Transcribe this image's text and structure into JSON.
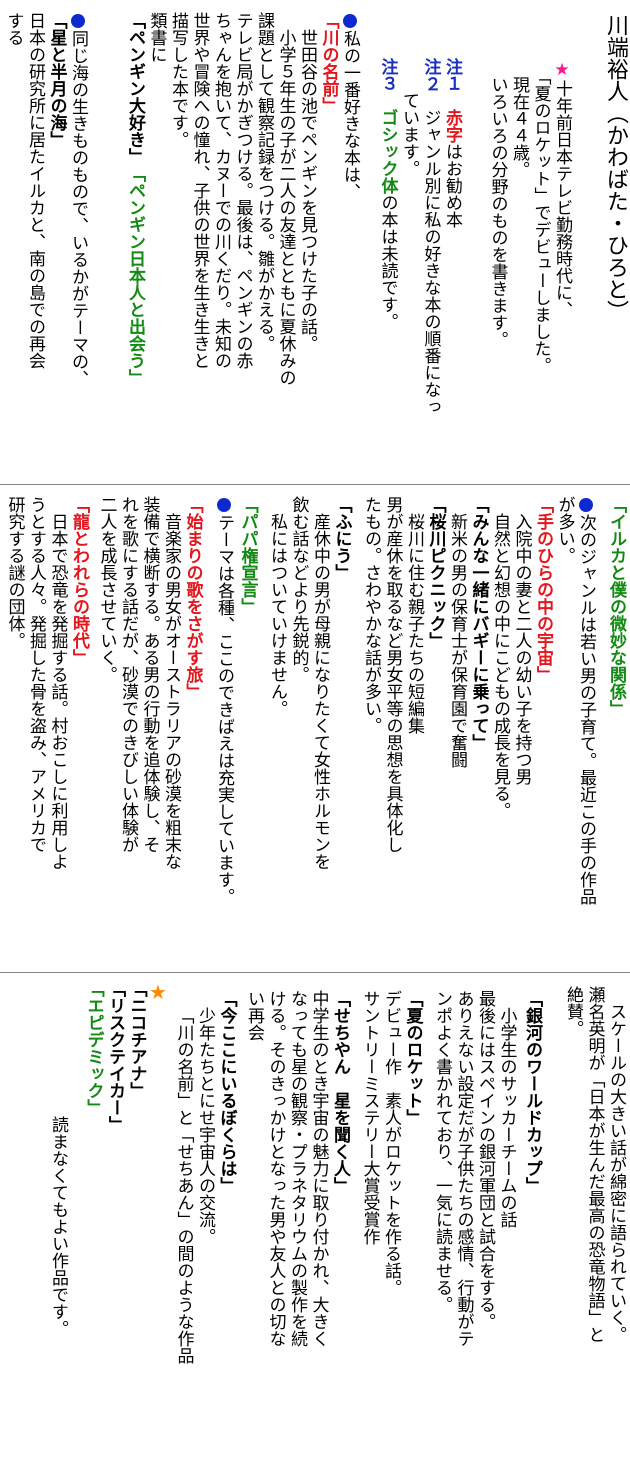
{
  "author": {
    "name_label": "川端裕人（かわばた・ひろと）"
  },
  "sec1": {
    "star": "★",
    "profile": [
      "十年前日本テレビ勤務時代に、",
      "「夏のロケット」でデビューしました。",
      "現在４４歳。",
      "いろいろの分野のものを書きます。"
    ],
    "notes": [
      {
        "label": "注１",
        "parts": [
          {
            "t": "赤字",
            "c": "red"
          },
          {
            "t": "はお勧め本",
            "c": ""
          }
        ]
      },
      {
        "label": "注２",
        "parts": [
          {
            "t": "ジャンル別に私の好きな本の順番になっ",
            "c": ""
          }
        ]
      },
      {
        "label": "",
        "parts": [
          {
            "t": "ています。",
            "c": ""
          }
        ]
      },
      {
        "label": "注３",
        "parts": [
          {
            "t": "ゴシック体",
            "c": "grn"
          },
          {
            "t": "の本は未読です。",
            "c": ""
          }
        ]
      }
    ],
    "favorite_intro": "私の一番好きな本は、",
    "book1_title": "「川の名前」",
    "book1_desc": [
      "世田谷の池でペンギンを見つけた子の話。",
      "小学５年生の子が二人の友達とともに夏休みの",
      "課題として観察記録をつける。雛がかえる。",
      "テレビ局がかぎつける。最後は、ペンギンの赤",
      "ちゃんを抱いて、カヌーでの川くだり。未知の",
      "世界や冒険への憧れ、子供の世界を生き生きと",
      "描写した本です。",
      "類書に"
    ],
    "similar1": "「ペンギン大好き」",
    "similar2": "「ペンギン日本人と出会う」",
    "sea_intro": [
      "同じ海の生きものもので、いるかがテーマの、"
    ],
    "sea_book": "「星と半月の海」",
    "sea_desc": [
      "日本の研究所に居たイルカと、南の島での再会",
      "する"
    ]
  },
  "sec2": {
    "dolphin_book": "「イルカと僕の微妙な関係」",
    "genre_intro": [
      "次のジャンルは若い男の子育て。最近この手の作品",
      "が多い。"
    ],
    "b1_title": "「手のひらの中の宇宙」",
    "b1_desc": [
      "入院中の妻と二人の幼い子を持つ男",
      "自然と幻想の中にこどもの成長を見る。"
    ],
    "b2_title": "「みんな一緒にバギーに乗って」",
    "b2_desc": [
      "新米の男の保育士が保育園で奮闘"
    ],
    "b3_title": "「桜川ピクニック」",
    "b3_desc": [
      "桜川に住む親子たちの短編集",
      "男が産休を取るなど男女平等の思想を具体化し",
      "たもの。さわやかな話が多い。"
    ],
    "b4_title": "「ふにう」",
    "b4_desc": [
      "産休中の男が母親になりたくて女性ホルモンを",
      "飲む話などより先鋭的。",
      "私にはついていけません。"
    ],
    "b5_title": "「パパ権宣言」",
    "theme_intro": [
      "テーマは各種、ここのできばえは充実しています。"
    ],
    "b6_title": "「始まりの歌をさがす旅」",
    "b6_desc": [
      "音楽家の男女がオーストラリアの砂漠を粗末な",
      "装備で横断する。ある男の行動を追体験し、そ",
      "れを歌にする話だが、砂漠でのきびしい体験が",
      "二人を成長させていく。"
    ],
    "b7_title": "「龍とわれらの時代」",
    "b7_desc": [
      "日本で恐竜を発掘する話。村おこしに利用しよ",
      "うとする人々。発掘した骨を盗み、アメリカで",
      "研究する謎の団体。"
    ]
  },
  "sec3": {
    "cont_desc": [
      "スケールの大きい話が綿密に語られていく。",
      "瀬名英明が「日本が生んだ最高の恐竜物語」と",
      "絶賛。"
    ],
    "b8_title": "「銀河のワールドカップ」",
    "b8_desc": [
      "小学生のサッカーチームの話",
      "最後にはスペインの銀河軍団と試合をする。",
      "ありえない設定だが子供たちの感情、行動がテ",
      "ンポよく書かれており、一気に読ませる。"
    ],
    "b9_title": "「夏のロケット」",
    "b9_desc": [
      "デビュー作　素人がロケットを作る話。",
      "サントリーミステリー大賞受賞作"
    ],
    "b10_title": "「せちやん　星を聞く人」",
    "b10_desc": [
      "中学生のとき宇宙の魅力に取り付かれ、大きく",
      "なっても星の観察・プラネタリウムの製作を続",
      "ける。そのきっかけとなった男や友人との切な",
      "い再会"
    ],
    "b11_title": "「今ここにいるぼくらは」",
    "b11_desc": [
      "少年たちとにせ宇宙人の交流。",
      "「川の名前」と「せちあん」の間のような作品"
    ],
    "star": "★",
    "b12_title": "「ニコチアナ」",
    "b13_title": "「リスクテイカー」",
    "b14_title": "「エピデミック」",
    "skip_note": "読まなくてもよい作品です。"
  }
}
